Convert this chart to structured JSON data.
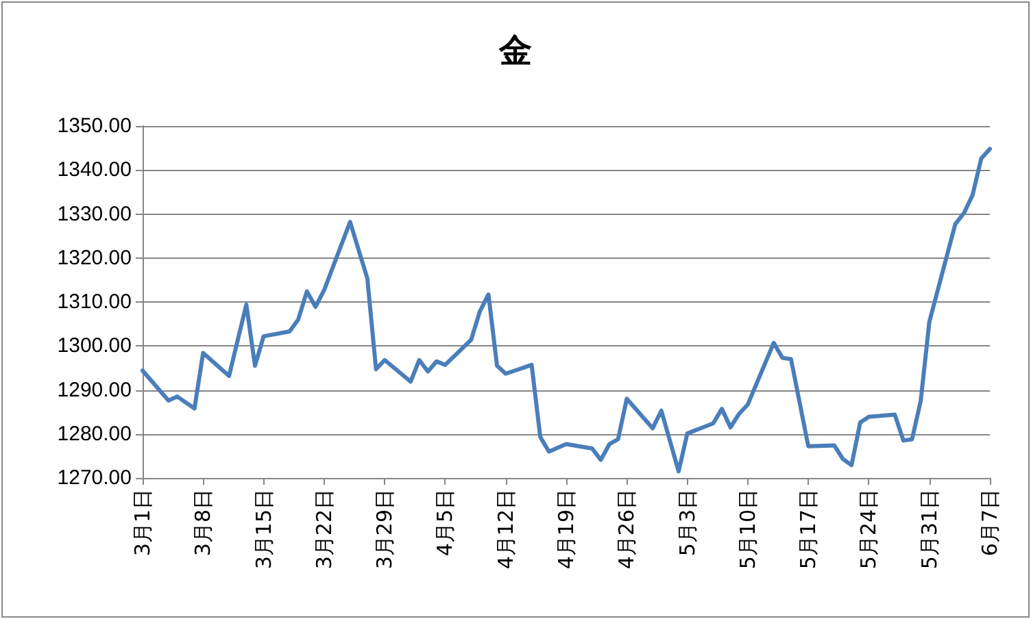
{
  "chart_data": {
    "type": "line",
    "title": "金",
    "x": [
      "--03-01",
      "--03-04",
      "--03-05",
      "--03-07",
      "--03-08",
      "--03-11",
      "--03-13",
      "--03-14",
      "--03-15",
      "--03-18",
      "--03-19",
      "--03-20",
      "--03-21",
      "--03-22",
      "--03-25",
      "--03-27",
      "--03-28",
      "--03-29",
      "--04-01",
      "--04-02",
      "--04-03",
      "--04-04",
      "--04-05",
      "--04-08",
      "--04-09",
      "--04-10",
      "--04-11",
      "--04-12",
      "--04-15",
      "--04-16",
      "--04-17",
      "--04-19",
      "--04-22",
      "--04-23",
      "--04-24",
      "--04-25",
      "--04-26",
      "--04-29",
      "--04-30",
      "--05-02",
      "--05-03",
      "--05-06",
      "--05-07",
      "--05-08",
      "--05-09",
      "--05-10",
      "--05-13",
      "--05-14",
      "--05-15",
      "--05-17",
      "--05-20",
      "--05-21",
      "--05-22",
      "--05-23",
      "--05-24",
      "--05-27",
      "--05-28",
      "--05-29",
      "--05-30",
      "--05-31",
      "--06-03",
      "--06-04",
      "--06-05",
      "--06-06",
      "--06-07"
    ],
    "series": [
      {
        "color": "#4a7ebb",
        "values": [
          1294.4,
          1287.6,
          1288.5,
          1285.8,
          1298.4,
          1293.2,
          1309.4,
          1295.5,
          1302.2,
          1303.3,
          1306.0,
          1312.4,
          1308.9,
          1312.7,
          1328.2,
          1315.3,
          1294.7,
          1296.8,
          1291.9,
          1296.8,
          1294.2,
          1296.5,
          1295.7,
          1301.4,
          1307.8,
          1311.7,
          1295.5,
          1293.7,
          1295.7,
          1279.3,
          1276.0,
          1277.7,
          1276.7,
          1274.1,
          1277.7,
          1278.8,
          1288.0,
          1281.3,
          1285.3,
          1271.5,
          1280.1,
          1282.4,
          1285.7,
          1281.5,
          1284.6,
          1286.7,
          1300.7,
          1297.3,
          1297.0,
          1277.2,
          1277.4,
          1274.3,
          1272.9,
          1282.6,
          1283.9,
          1284.4,
          1278.5,
          1278.8,
          1287.5,
          1305.5,
          1327.7,
          1330.2,
          1334.3,
          1342.6,
          1344.8
        ]
      }
    ],
    "xlim": [
      "--03-01",
      "--06-07"
    ],
    "xticks": [
      {
        "value": "--03-01",
        "label": "3月1日"
      },
      {
        "value": "--03-08",
        "label": "3月8日"
      },
      {
        "value": "--03-15",
        "label": "3月15日"
      },
      {
        "value": "--03-22",
        "label": "3月22日"
      },
      {
        "value": "--03-29",
        "label": "3月29日"
      },
      {
        "value": "--04-05",
        "label": "4月5日"
      },
      {
        "value": "--04-12",
        "label": "4月12日"
      },
      {
        "value": "--04-19",
        "label": "4月19日"
      },
      {
        "value": "--04-26",
        "label": "4月26日"
      },
      {
        "value": "--05-03",
        "label": "5月3日"
      },
      {
        "value": "--05-10",
        "label": "5月10日"
      },
      {
        "value": "--05-17",
        "label": "5月17日"
      },
      {
        "value": "--05-24",
        "label": "5月24日"
      },
      {
        "value": "--05-31",
        "label": "5月31日"
      },
      {
        "value": "--06-07",
        "label": "6月7日"
      }
    ],
    "ylim": [
      1270,
      1350
    ],
    "yticks": [
      {
        "value": 1270,
        "label": "1270.00"
      },
      {
        "value": 1280,
        "label": "1280.00"
      },
      {
        "value": 1290,
        "label": "1290.00"
      },
      {
        "value": 1300,
        "label": "1300.00"
      },
      {
        "value": 1310,
        "label": "1310.00"
      },
      {
        "value": 1320,
        "label": "1320.00"
      },
      {
        "value": 1330,
        "label": "1330.00"
      },
      {
        "value": 1340,
        "label": "1340.00"
      },
      {
        "value": 1350,
        "label": "1350.00"
      }
    ],
    "grid": "y",
    "marker": "none",
    "line_style": "solid"
  }
}
